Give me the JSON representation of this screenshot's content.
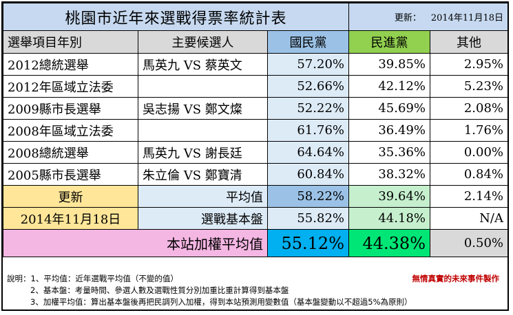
{
  "title": "桃園市近年來選戰得票率統計表",
  "updated_label": "更新：",
  "updated_date": "2014年11月18日",
  "headers": {
    "item": "選舉項目年別",
    "candidates": "主要候選人",
    "kmt": "國民黨",
    "dpp": "民進黨",
    "other": "其他"
  },
  "rows": [
    {
      "item": "2012總統選舉",
      "candidates": "馬英九 VS  蔡英文",
      "kmt": "57.20%",
      "dpp": "39.85%",
      "other": "2.95%"
    },
    {
      "item": "2012年區域立法委",
      "candidates": "",
      "kmt": "52.66%",
      "dpp": "42.12%",
      "other": "5.23%"
    },
    {
      "item": "2009縣市長選舉",
      "candidates": "吳志揚 VS  鄭文燦",
      "kmt": "52.22%",
      "dpp": "45.69%",
      "other": "2.08%"
    },
    {
      "item": "2008年區域立法委",
      "candidates": "",
      "kmt": "61.76%",
      "dpp": "36.49%",
      "other": "1.76%"
    },
    {
      "item": "2008總統選舉",
      "candidates": "馬英九 VS 謝長廷",
      "kmt": "64.64%",
      "dpp": "35.36%",
      "other": "0.00%"
    },
    {
      "item": "2005縣市長選舉",
      "candidates": "朱立倫 VS 鄭寶清",
      "kmt": "60.84%",
      "dpp": "38.32%",
      "other": "0.84%"
    }
  ],
  "update_block": {
    "label": "更新",
    "date": "2014年11月18日"
  },
  "average": {
    "label": "平均值",
    "kmt": "58.22%",
    "dpp": "39.64%",
    "other": "2.14%"
  },
  "base": {
    "label": "選戰基本盤",
    "kmt": "55.82%",
    "dpp": "44.18%",
    "other": "N/A"
  },
  "weighted": {
    "label": "本站加權平均值",
    "kmt": "55.12%",
    "dpp": "44.38%",
    "other": "0.50%"
  },
  "notes": {
    "line1": "說明：1、平均值：近年選戰平均值（不變的值）",
    "line2": "2、基本盤：考量時間、參選人數及選戰性質分別加重比重計算得到基本盤",
    "line3": "3、加權平均值：算出基本盤後再把民調列入加權，得到本站預測用變數值（基本盤變動以不超過5%為原則）",
    "credit": "無情真實的未來事件製作"
  },
  "colors": {
    "title_bg": "#c6d9f0",
    "kmt": "#9bc2e6",
    "dpp": "#92d050",
    "final_kmt": "#00b0f0",
    "final_dpp": "#00e676",
    "final_label": "#f4b6e3",
    "update_bg": "#ffe699",
    "credit": "#c00000"
  }
}
